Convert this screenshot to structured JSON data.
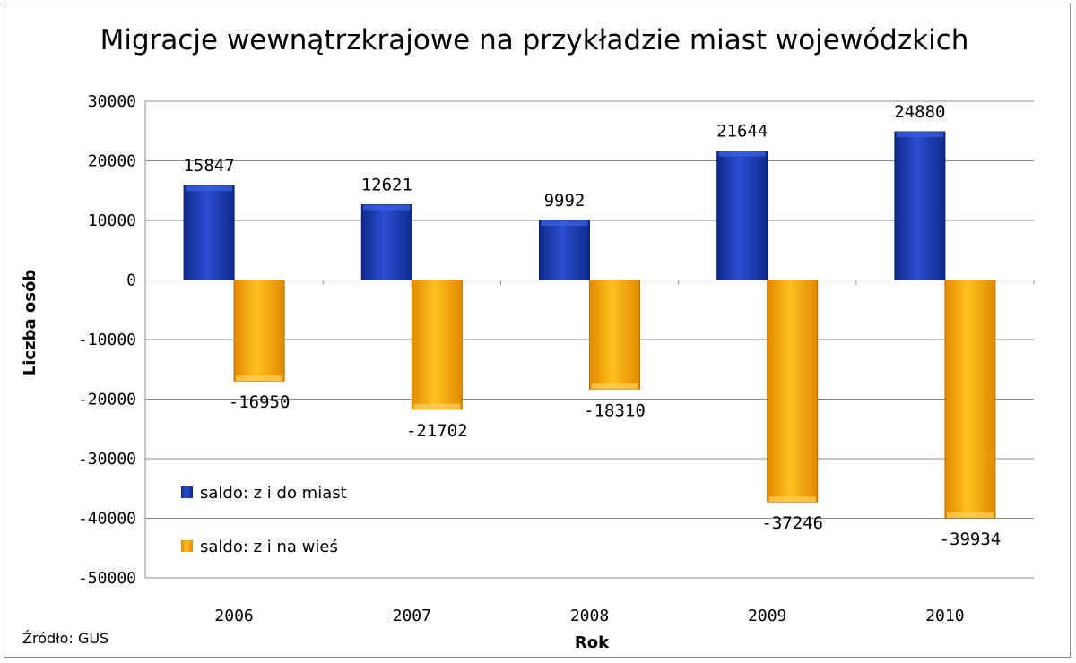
{
  "chart_data": {
    "type": "bar",
    "title": "Migracje wewnątrzkrajowe na przykładzie miast wojewódzkich",
    "xlabel": "Rok",
    "ylabel": "Liczba osób",
    "categories": [
      "2006",
      "2007",
      "2008",
      "2009",
      "2010"
    ],
    "series": [
      {
        "name": "saldo: z i do miast",
        "color": "#1f3fb4",
        "values": [
          15847,
          12621,
          9992,
          21644,
          24880
        ]
      },
      {
        "name": "saldo: z i na wieś",
        "color": "#f5a300",
        "values": [
          -16950,
          -21702,
          -18310,
          -37246,
          -39934
        ]
      }
    ],
    "data_labels": {
      "series0": [
        "15847",
        "12621",
        "9992",
        "21644",
        "24880"
      ],
      "series1": [
        "-16950",
        "-21702",
        "-18310",
        "-37246",
        "-39934"
      ]
    },
    "ylim": [
      -50000,
      30000
    ],
    "yticks": [
      "30000",
      "20000",
      "10000",
      "0",
      "-10000",
      "-20000",
      "-30000",
      "-40000",
      "-50000"
    ],
    "ytick_values": [
      30000,
      20000,
      10000,
      0,
      -10000,
      -20000,
      -30000,
      -40000,
      -50000
    ],
    "grid": true,
    "legend_position": "bottom-left inside plot",
    "source": "Źródło: GUS"
  }
}
